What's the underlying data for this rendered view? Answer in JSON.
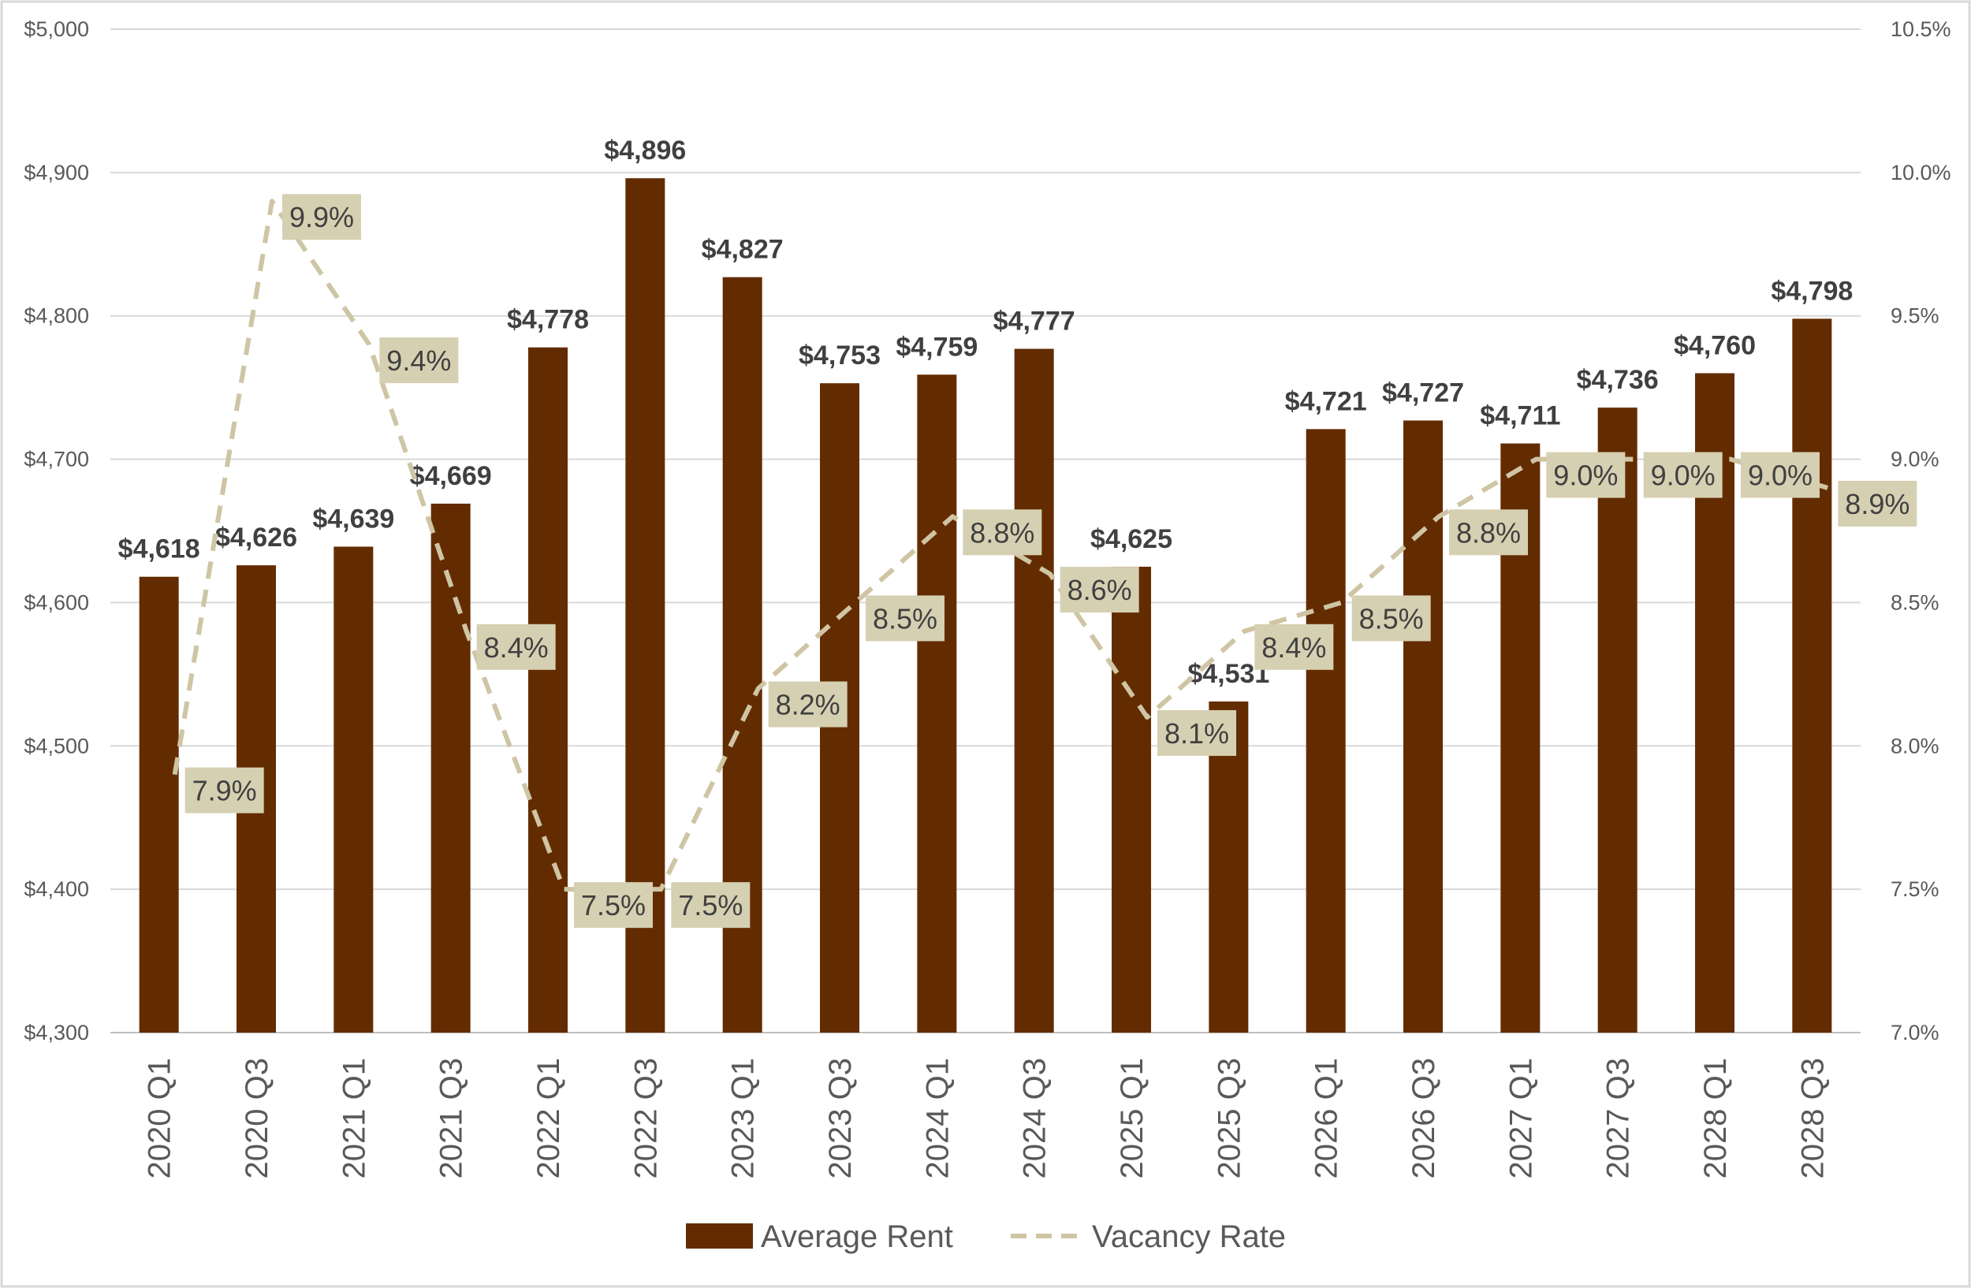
{
  "chart_data": {
    "type": "bar",
    "categories": [
      "2020 Q1",
      "2020 Q3",
      "2021 Q1",
      "2021 Q3",
      "2022 Q1",
      "2022 Q3",
      "2023 Q1",
      "2023 Q3",
      "2024 Q1",
      "2024 Q3",
      "2025 Q1",
      "2025 Q3",
      "2026 Q1",
      "2026 Q3",
      "2027 Q1",
      "2027 Q3",
      "2028 Q1",
      "2028 Q3"
    ],
    "series": [
      {
        "name": "Average Rent",
        "type": "bar",
        "axis": "left",
        "color": "#632c00",
        "values": [
          4618,
          4626,
          4639,
          4669,
          4778,
          4896,
          4827,
          4753,
          4759,
          4777,
          4625,
          4531,
          4721,
          4727,
          4711,
          4736,
          4760,
          4798
        ],
        "labels": [
          "$4,618",
          "$4,626",
          "$4,639",
          "$4,669",
          "$4,778",
          "$4,896",
          "$4,827",
          "$4,753",
          "$4,759",
          "$4,777",
          "$4,625",
          "$4,531",
          "$4,721",
          "$4,727",
          "$4,711",
          "$4,736",
          "$4,760",
          "$4,798"
        ]
      },
      {
        "name": "Vacancy Rate",
        "type": "line",
        "style": "dashed",
        "axis": "right",
        "color": "#cfc5a4",
        "label_bg": "#d6d0b2",
        "values": [
          7.9,
          9.9,
          9.4,
          8.4,
          7.5,
          7.5,
          8.2,
          8.5,
          8.8,
          8.6,
          8.1,
          8.4,
          8.5,
          8.8,
          9.0,
          9.0,
          9.0,
          8.9
        ],
        "labels": [
          "7.9%",
          "9.9%",
          "9.4%",
          "8.4%",
          "7.5%",
          "7.5%",
          "8.2%",
          "8.5%",
          "8.8%",
          "8.6%",
          "8.1%",
          "8.4%",
          "8.5%",
          "8.8%",
          "9.0%",
          "9.0%",
          "9.0%",
          "8.9%"
        ]
      }
    ],
    "y_left": {
      "min": 4300,
      "max": 5000,
      "ticks": [
        4300,
        4400,
        4500,
        4600,
        4700,
        4800,
        4900,
        5000
      ],
      "tick_labels": [
        "$4,300",
        "$4,400",
        "$4,500",
        "$4,600",
        "$4,700",
        "$4,800",
        "$4,900",
        "$5,000"
      ]
    },
    "y_right": {
      "min": 7.0,
      "max": 10.5,
      "ticks": [
        7.0,
        7.5,
        8.0,
        8.5,
        9.0,
        9.5,
        10.0,
        10.5
      ],
      "tick_labels": [
        "7.0%",
        "7.5%",
        "8.0%",
        "8.5%",
        "9.0%",
        "9.5%",
        "10.0%",
        "10.5%"
      ]
    },
    "grid": true,
    "legend_position": "bottom-center",
    "title": "",
    "xlabel": "",
    "ylabel": ""
  }
}
